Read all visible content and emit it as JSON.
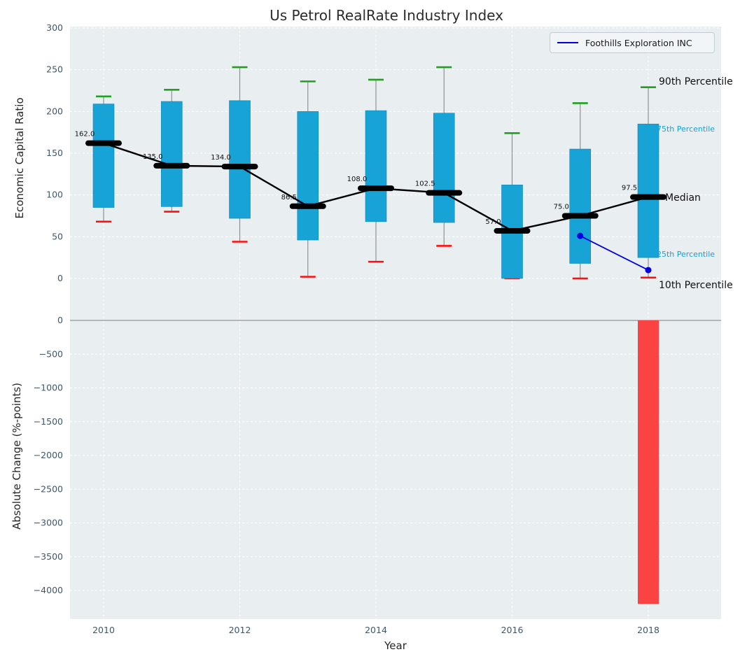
{
  "title": "Us Petrol RealRate Industry Index",
  "axes": {
    "top_ylabel": "Economic Capital Ratio",
    "bottom_ylabel": "Absolute Change (%-points)",
    "xlabel": "Year",
    "top_yticks": [
      0,
      50,
      100,
      150,
      200,
      250,
      300
    ],
    "bottom_yticks": [
      0,
      -500,
      -1000,
      -1500,
      -2000,
      -2500,
      -3000,
      -3500,
      -4000
    ],
    "xticks": [
      2010,
      2012,
      2014,
      2016,
      2018
    ]
  },
  "legend": {
    "series_label": "Foothills Exploration INC"
  },
  "annotations": {
    "p90_label": "90th Percentile",
    "p75_label": "75th Percentile",
    "median_label": "Median",
    "p25_label": "25th Percentile",
    "p10_label": "10th Percentile"
  },
  "colors": {
    "panel": "#e9eef0",
    "grid": "#ffffff",
    "box": "#17a3d6",
    "box_edge": "#0f87b5",
    "p90_cap": "#1fa11f",
    "p10_cap": "#ff0f0f",
    "median": "#000000",
    "series": "#0000e0",
    "bar": "#fc4343",
    "tick_label": "#3f566b",
    "whisker": "#8a8a8a",
    "zero_line": "#a3a3a3"
  },
  "chart_data": [
    {
      "type": "boxplot",
      "title": "Us Petrol RealRate Industry Index",
      "xlabel": "Year",
      "ylabel": "Economic Capital Ratio",
      "ylim": [
        0,
        300
      ],
      "grid": true,
      "legend_position": "upper right",
      "years": [
        2010,
        2011,
        2012,
        2013,
        2014,
        2015,
        2016,
        2017,
        2018
      ],
      "p10": [
        68,
        80,
        44,
        2,
        20,
        39,
        0,
        0,
        1
      ],
      "p25": [
        85,
        86,
        72,
        46,
        68,
        67,
        0,
        18,
        25
      ],
      "median": [
        162.0,
        135.0,
        134.0,
        86.5,
        108.0,
        102.5,
        57.0,
        75.0,
        97.5
      ],
      "p75": [
        209,
        212,
        213,
        200,
        201,
        198,
        112,
        155,
        185
      ],
      "p90": [
        218,
        226,
        253,
        236,
        238,
        253,
        174,
        210,
        229
      ],
      "median_labels": [
        "162.0",
        "135.0",
        "134.0",
        "86.5",
        "108.0",
        "102.5",
        "57.0",
        "75.0",
        "97.5"
      ],
      "series": [
        {
          "name": "Foothills Exploration INC",
          "x": [
            2017,
            2018
          ],
          "y": [
            51,
            10
          ]
        }
      ]
    },
    {
      "type": "bar",
      "ylabel": "Absolute Change (%-points)",
      "ylim": [
        -4300,
        0
      ],
      "categories": [
        2018
      ],
      "values": [
        -4200
      ]
    }
  ]
}
